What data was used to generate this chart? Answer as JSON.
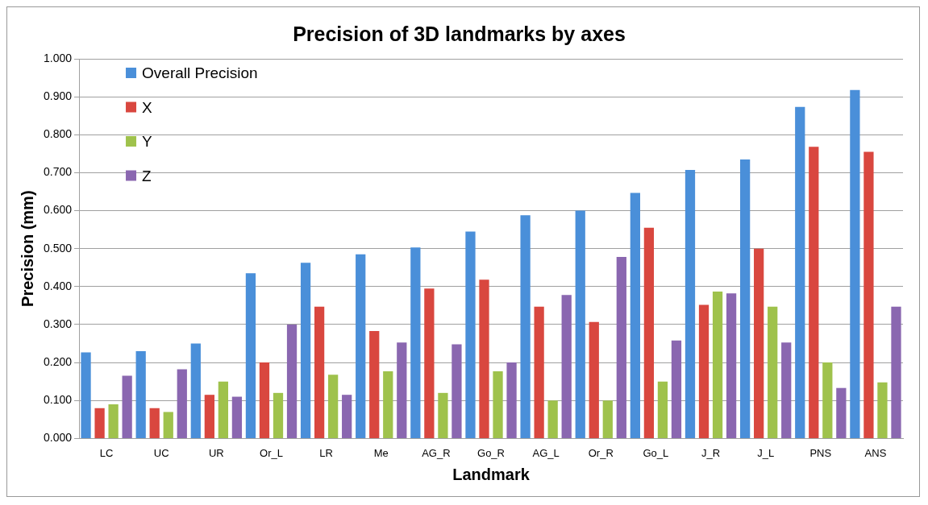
{
  "chart_data": {
    "type": "bar",
    "title": "Precision of 3D landmarks by axes",
    "xlabel": "Landmark",
    "ylabel": "Precision (mm)",
    "categories": [
      "LC",
      "UC",
      "UR",
      "Or_L",
      "LR",
      "Me",
      "AG_R",
      "Go_R",
      "AG_L",
      "Or_R",
      "Go_L",
      "J_R",
      "J_L",
      "PNS",
      "ANS"
    ],
    "series": [
      {
        "name": "Overall Precision",
        "color": "#4a8fd9",
        "values": [
          0.227,
          0.23,
          0.25,
          0.435,
          0.463,
          0.485,
          0.503,
          0.545,
          0.588,
          0.6,
          0.647,
          0.707,
          0.735,
          0.873,
          0.918
        ]
      },
      {
        "name": "X",
        "color": "#d9473f",
        "values": [
          0.08,
          0.08,
          0.115,
          0.2,
          0.347,
          0.283,
          0.395,
          0.418,
          0.347,
          0.307,
          0.555,
          0.352,
          0.5,
          0.768,
          0.755
        ]
      },
      {
        "name": "Y",
        "color": "#9fc24c",
        "values": [
          0.09,
          0.07,
          0.15,
          0.12,
          0.168,
          0.177,
          0.12,
          0.177,
          0.1,
          0.1,
          0.15,
          0.387,
          0.347,
          0.2,
          0.148
        ]
      },
      {
        "name": "Z",
        "color": "#8a67b0",
        "values": [
          0.165,
          0.182,
          0.11,
          0.3,
          0.115,
          0.253,
          0.248,
          0.2,
          0.378,
          0.478,
          0.258,
          0.382,
          0.253,
          0.133,
          0.347
        ]
      }
    ],
    "ylim": [
      0,
      1
    ],
    "yticks": [
      {
        "value": 0,
        "label": "0.000"
      },
      {
        "value": 0.1,
        "label": "0.100"
      },
      {
        "value": 0.2,
        "label": "0.200"
      },
      {
        "value": 0.3,
        "label": "0.300"
      },
      {
        "value": 0.4,
        "label": "0.400"
      },
      {
        "value": 0.5,
        "label": "0.500"
      },
      {
        "value": 0.6,
        "label": "0.600"
      },
      {
        "value": 0.7,
        "label": "0.700"
      },
      {
        "value": 0.8,
        "label": "0.800"
      },
      {
        "value": 0.9,
        "label": "0.900"
      },
      {
        "value": 1,
        "label": "1.000"
      }
    ],
    "grid": "y",
    "legend": "top left"
  }
}
